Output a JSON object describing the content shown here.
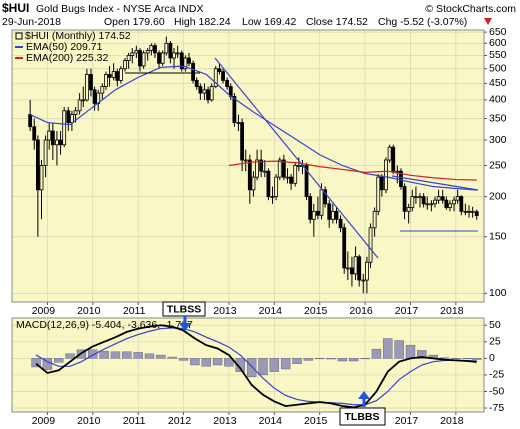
{
  "header": {
    "symbol": "$HUI",
    "name": "Gold Bugs Index - NYSE Arca INDX",
    "source": "© StockCharts.com",
    "date": "29-Jun-2018",
    "open": "Open 179.60",
    "high": "High 182.24",
    "low": "Low 169.42",
    "close": "Close 174.52",
    "change": "Chg -5.52 (-3.07%)"
  },
  "annotations": [
    "TLBSS",
    "TLBBS"
  ],
  "chart_data": [
    {
      "type": "candlestick",
      "name": "$HUI (Monthly) 174.52",
      "log_scale": true,
      "grid": true,
      "background": "#faf7c6",
      "xlim": [
        2008.22,
        2018.62
      ],
      "xticks": [
        2009,
        2010,
        2011,
        2012,
        2013,
        2014,
        2015,
        2016,
        2017,
        2018
      ],
      "ylim": [
        94,
        660
      ],
      "yticks": [
        650,
        600,
        550,
        500,
        450,
        400,
        350,
        300,
        250,
        200,
        150,
        100
      ],
      "up_color": "#faf7c6",
      "down_color": "#000000",
      "x": [
        2008.62,
        2008.71,
        2008.79,
        2008.87,
        2008.96,
        2009.04,
        2009.12,
        2009.21,
        2009.29,
        2009.37,
        2009.46,
        2009.54,
        2009.62,
        2009.71,
        2009.79,
        2009.87,
        2009.96,
        2010.04,
        2010.12,
        2010.21,
        2010.29,
        2010.37,
        2010.46,
        2010.54,
        2010.62,
        2010.71,
        2010.79,
        2010.87,
        2010.96,
        2011.04,
        2011.12,
        2011.21,
        2011.29,
        2011.37,
        2011.46,
        2011.54,
        2011.62,
        2011.71,
        2011.79,
        2011.87,
        2011.96,
        2012.04,
        2012.12,
        2012.21,
        2012.29,
        2012.37,
        2012.46,
        2012.54,
        2012.62,
        2012.71,
        2012.79,
        2012.87,
        2012.96,
        2013.04,
        2013.12,
        2013.21,
        2013.29,
        2013.37,
        2013.46,
        2013.54,
        2013.62,
        2013.71,
        2013.79,
        2013.87,
        2013.96,
        2014.04,
        2014.12,
        2014.21,
        2014.29,
        2014.37,
        2014.46,
        2014.54,
        2014.62,
        2014.71,
        2014.79,
        2014.87,
        2014.96,
        2015.04,
        2015.12,
        2015.21,
        2015.29,
        2015.37,
        2015.46,
        2015.54,
        2015.62,
        2015.71,
        2015.79,
        2015.87,
        2015.96,
        2016.04,
        2016.12,
        2016.21,
        2016.29,
        2016.37,
        2016.46,
        2016.54,
        2016.62,
        2016.71,
        2016.79,
        2016.87,
        2016.96,
        2017.04,
        2017.12,
        2017.21,
        2017.29,
        2017.37,
        2017.46,
        2017.54,
        2017.62,
        2017.71,
        2017.79,
        2017.87,
        2017.96,
        2018.04,
        2018.12,
        2018.21,
        2018.29,
        2018.37,
        2018.46
      ],
      "ohlc": [
        [
          360,
          400,
          320,
          330
        ],
        [
          330,
          350,
          280,
          300
        ],
        [
          300,
          310,
          150,
          210
        ],
        [
          210,
          260,
          170,
          250
        ],
        [
          250,
          310,
          230,
          300
        ],
        [
          300,
          340,
          280,
          320
        ],
        [
          320,
          340,
          260,
          290
        ],
        [
          290,
          320,
          250,
          300
        ],
        [
          300,
          320,
          270,
          290
        ],
        [
          290,
          380,
          285,
          370
        ],
        [
          370,
          380,
          320,
          340
        ],
        [
          340,
          370,
          320,
          360
        ],
        [
          360,
          380,
          340,
          370
        ],
        [
          370,
          420,
          360,
          400
        ],
        [
          400,
          440,
          380,
          400
        ],
        [
          400,
          500,
          395,
          480
        ],
        [
          480,
          500,
          410,
          430
        ],
        [
          430,
          440,
          370,
          390
        ],
        [
          390,
          430,
          370,
          420
        ],
        [
          420,
          450,
          400,
          440
        ],
        [
          440,
          490,
          430,
          480
        ],
        [
          480,
          510,
          440,
          470
        ],
        [
          470,
          520,
          460,
          490
        ],
        [
          490,
          500,
          440,
          460
        ],
        [
          460,
          510,
          450,
          500
        ],
        [
          500,
          540,
          490,
          530
        ],
        [
          530,
          560,
          500,
          550
        ],
        [
          550,
          580,
          520,
          560
        ],
        [
          560,
          590,
          540,
          570
        ],
        [
          570,
          580,
          490,
          510
        ],
        [
          510,
          570,
          500,
          560
        ],
        [
          560,
          580,
          530,
          570
        ],
        [
          570,
          600,
          550,
          590
        ],
        [
          590,
          600,
          540,
          560
        ],
        [
          560,
          570,
          500,
          520
        ],
        [
          520,
          570,
          510,
          560
        ],
        [
          560,
          630,
          550,
          600
        ],
        [
          600,
          610,
          520,
          540
        ],
        [
          540,
          580,
          500,
          560
        ],
        [
          560,
          590,
          540,
          560
        ],
        [
          560,
          570,
          490,
          500
        ],
        [
          500,
          550,
          490,
          540
        ],
        [
          540,
          560,
          510,
          520
        ],
        [
          520,
          530,
          450,
          460
        ],
        [
          460,
          470,
          430,
          440
        ],
        [
          440,
          450,
          400,
          420
        ],
        [
          420,
          450,
          400,
          430
        ],
        [
          430,
          440,
          390,
          400
        ],
        [
          400,
          450,
          395,
          440
        ],
        [
          440,
          510,
          435,
          500
        ],
        [
          500,
          520,
          480,
          490
        ],
        [
          490,
          500,
          450,
          460
        ],
        [
          460,
          470,
          430,
          440
        ],
        [
          440,
          450,
          400,
          410
        ],
        [
          410,
          420,
          330,
          340
        ],
        [
          340,
          360,
          320,
          340
        ],
        [
          340,
          350,
          240,
          260
        ],
        [
          260,
          280,
          240,
          260
        ],
        [
          260,
          270,
          190,
          210
        ],
        [
          210,
          240,
          200,
          230
        ],
        [
          230,
          280,
          225,
          260
        ],
        [
          260,
          280,
          230,
          240
        ],
        [
          240,
          260,
          230,
          240
        ],
        [
          240,
          245,
          195,
          200
        ],
        [
          200,
          215,
          190,
          200
        ],
        [
          200,
          235,
          195,
          230
        ],
        [
          230,
          265,
          225,
          260
        ],
        [
          260,
          270,
          225,
          230
        ],
        [
          230,
          245,
          220,
          230
        ],
        [
          230,
          235,
          210,
          220
        ],
        [
          220,
          255,
          215,
          250
        ],
        [
          250,
          265,
          240,
          250
        ],
        [
          250,
          260,
          235,
          250
        ],
        [
          250,
          255,
          195,
          200
        ],
        [
          200,
          205,
          165,
          170
        ],
        [
          170,
          190,
          150,
          180
        ],
        [
          180,
          200,
          170,
          175
        ],
        [
          175,
          220,
          170,
          210
        ],
        [
          210,
          215,
          185,
          190
        ],
        [
          190,
          195,
          160,
          170
        ],
        [
          170,
          190,
          165,
          180
        ],
        [
          180,
          185,
          165,
          170
        ],
        [
          170,
          175,
          155,
          160
        ],
        [
          160,
          165,
          115,
          120
        ],
        [
          120,
          135,
          110,
          120
        ],
        [
          120,
          130,
          105,
          115
        ],
        [
          115,
          140,
          110,
          130
        ],
        [
          130,
          132,
          105,
          110
        ],
        [
          110,
          115,
          100,
          110
        ],
        [
          110,
          130,
          100,
          125
        ],
        [
          125,
          165,
          120,
          160
        ],
        [
          160,
          185,
          150,
          180
        ],
        [
          180,
          235,
          175,
          230
        ],
        [
          230,
          235,
          200,
          210
        ],
        [
          210,
          265,
          205,
          260
        ],
        [
          260,
          290,
          255,
          285
        ],
        [
          285,
          290,
          235,
          240
        ],
        [
          240,
          250,
          220,
          240
        ],
        [
          240,
          245,
          210,
          215
        ],
        [
          215,
          220,
          170,
          180
        ],
        [
          180,
          190,
          165,
          185
        ],
        [
          185,
          210,
          180,
          200
        ],
        [
          200,
          215,
          190,
          200
        ],
        [
          200,
          205,
          185,
          200
        ],
        [
          200,
          205,
          185,
          190
        ],
        [
          190,
          200,
          182,
          190
        ],
        [
          190,
          195,
          180,
          190
        ],
        [
          190,
          200,
          185,
          195
        ],
        [
          195,
          210,
          190,
          200
        ],
        [
          200,
          210,
          190,
          195
        ],
        [
          195,
          200,
          182,
          185
        ],
        [
          185,
          195,
          180,
          190
        ],
        [
          190,
          200,
          180,
          195
        ],
        [
          195,
          210,
          190,
          200
        ],
        [
          200,
          202,
          175,
          180
        ],
        [
          180,
          190,
          175,
          180
        ],
        [
          180,
          188,
          172,
          180
        ],
        [
          180,
          186,
          172,
          180
        ],
        [
          179.6,
          182.24,
          169.42,
          174.52
        ]
      ],
      "series": [
        {
          "name": "EMA(50) 209.71",
          "color": "#3344cc",
          "x": [
            2008.62,
            2009.0,
            2009.5,
            2010.0,
            2010.5,
            2011.0,
            2011.5,
            2012.0,
            2012.5,
            2013.0,
            2013.5,
            2014.0,
            2014.5,
            2015.0,
            2015.5,
            2016.0,
            2016.5,
            2017.0,
            2017.5,
            2018.0,
            2018.46
          ],
          "values": [
            360,
            340,
            335,
            380,
            430,
            470,
            505,
            510,
            480,
            415,
            370,
            333,
            300,
            270,
            250,
            236,
            230,
            222,
            215,
            212,
            209.71
          ]
        },
        {
          "name": "EMA(200) 225.32",
          "color": "#cc2222",
          "x": [
            2013.0,
            2013.5,
            2014.0,
            2014.5,
            2015.0,
            2015.5,
            2016.0,
            2016.5,
            2017.0,
            2017.5,
            2018.0,
            2018.46
          ],
          "values": [
            250,
            256,
            258,
            255,
            248,
            243,
            238,
            240,
            233,
            229,
            226,
            225.32
          ]
        }
      ]
    },
    {
      "type": "macd",
      "title": "MACD(12,26,9) -5.404, -3.636, -1.767",
      "grid": true,
      "background": "#faf7c6",
      "xlim": [
        2008.22,
        2018.62
      ],
      "xticks": [
        2009,
        2010,
        2011,
        2012,
        2013,
        2014,
        2015,
        2016,
        2017,
        2018
      ],
      "ylim": [
        -81,
        61
      ],
      "yticks": [
        50,
        25,
        0,
        -25,
        -50,
        -75
      ],
      "x": [
        2008.75,
        2009.0,
        2009.25,
        2009.5,
        2009.75,
        2010.0,
        2010.25,
        2010.5,
        2010.75,
        2011.0,
        2011.25,
        2011.5,
        2011.75,
        2012.0,
        2012.25,
        2012.5,
        2012.75,
        2013.0,
        2013.25,
        2013.5,
        2013.75,
        2014.0,
        2014.25,
        2014.5,
        2014.75,
        2015.0,
        2015.25,
        2015.5,
        2015.75,
        2016.0,
        2016.25,
        2016.5,
        2016.75,
        2017.0,
        2017.25,
        2017.5,
        2017.75,
        2018.0,
        2018.25,
        2018.46
      ],
      "series": [
        {
          "style": "bar",
          "color": "#9a9ab8",
          "values": [
            -13,
            -17,
            -6,
            7,
            13,
            13,
            11,
            10,
            10,
            9,
            7,
            5,
            2,
            -3,
            -10,
            -12,
            -10,
            -12,
            -20,
            -28,
            -25,
            -20,
            -16,
            -8,
            -3,
            0,
            -1,
            -4,
            -4,
            0,
            14,
            30,
            27,
            20,
            12,
            5,
            1,
            0,
            -0.5,
            -1.767
          ]
        },
        {
          "style": "line",
          "color": "#3344cc",
          "values": [
            5,
            -5,
            -12,
            -12,
            -5,
            5,
            14,
            22,
            30,
            36,
            41,
            45,
            46,
            45,
            40,
            32,
            25,
            17,
            5,
            -12,
            -30,
            -45,
            -56,
            -62,
            -65,
            -66,
            -67,
            -68,
            -70,
            -70,
            -64,
            -50,
            -32,
            -20,
            -10,
            -5,
            -3,
            -3,
            -3.5,
            -3.636
          ]
        },
        {
          "style": "line",
          "color": "#000000",
          "values": [
            -8,
            -22,
            -18,
            -5,
            8,
            18,
            25,
            32,
            40,
            45,
            48,
            50,
            48,
            42,
            30,
            20,
            15,
            5,
            -15,
            -40,
            -55,
            -65,
            -72,
            -70,
            -68,
            -66,
            -68,
            -72,
            -74,
            -70,
            -50,
            -20,
            -5,
            0,
            2,
            0,
            -2,
            -3,
            -4,
            -5.404
          ]
        }
      ]
    }
  ]
}
